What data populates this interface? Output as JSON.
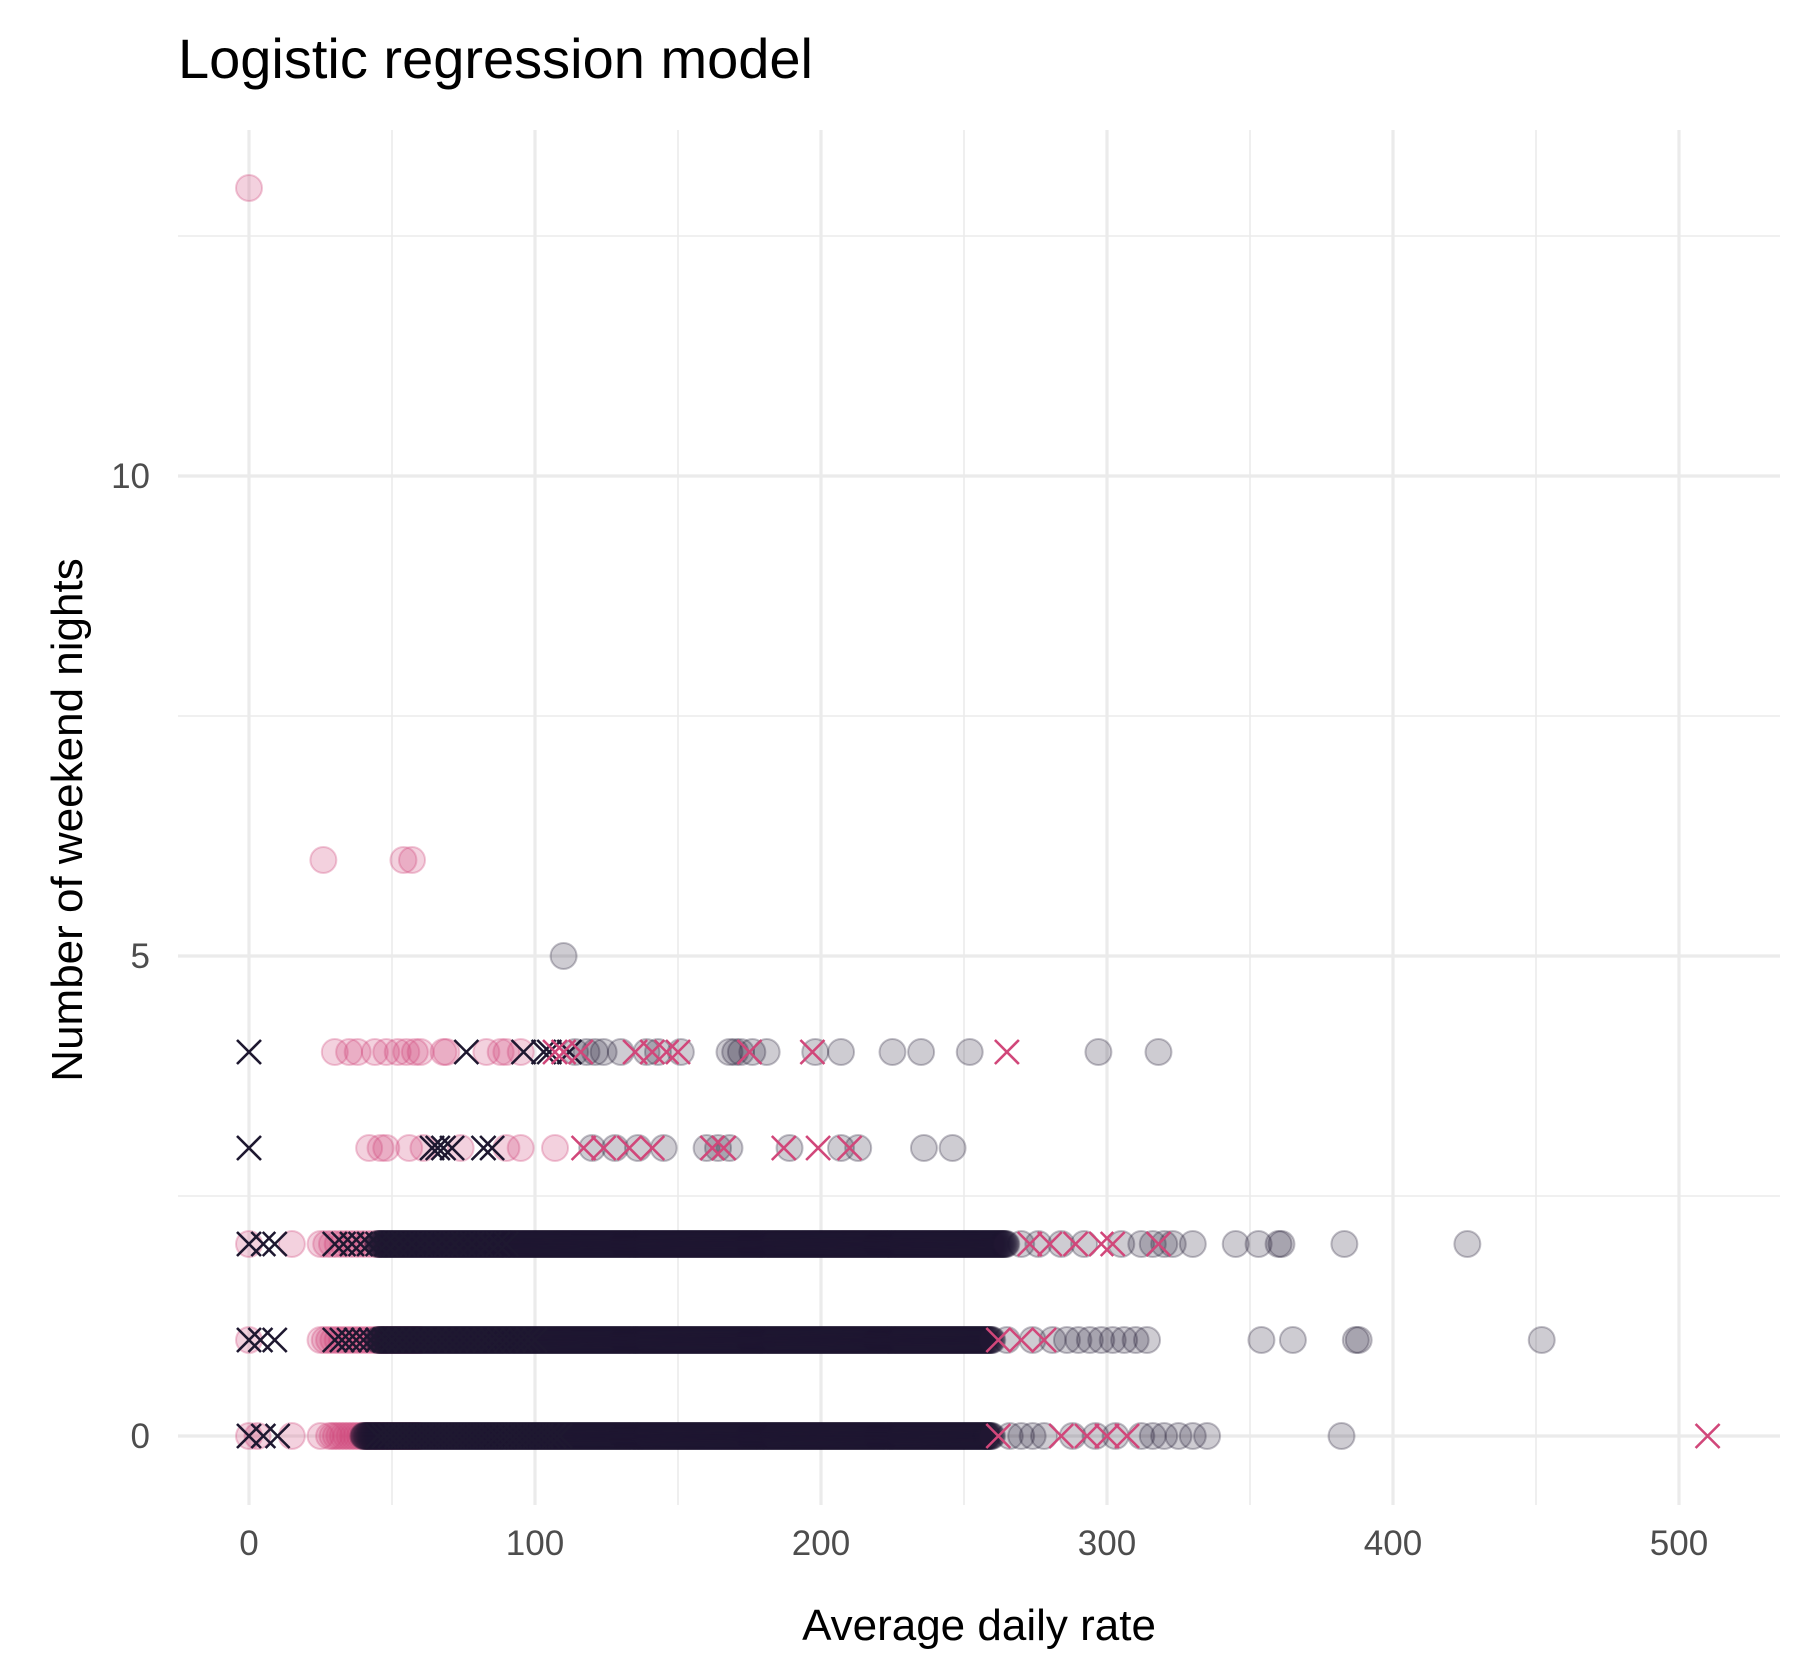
{
  "chart_data": {
    "type": "scatter",
    "title": "Logistic regression model",
    "xlabel": "Average daily rate",
    "ylabel": "Number of weekend nights",
    "xlim": [
      -25,
      530
    ],
    "ylim": [
      -0.6,
      13.8
    ],
    "x_ticks": [
      0,
      100,
      200,
      300,
      400,
      500
    ],
    "x_tick_labels": [
      "0",
      "100",
      "200",
      "300",
      "400",
      "500"
    ],
    "x_minor_ticks": [
      50,
      150,
      250,
      350,
      450
    ],
    "y_ticks": [
      0,
      5,
      10
    ],
    "y_tick_labels": [
      "0",
      "5",
      "10"
    ],
    "y_minor_ticks": [
      2.5,
      7.5,
      12.5
    ],
    "grid": true,
    "legend": "none",
    "colors": {
      "pink": "#d1477a",
      "dark": "#1e1830"
    },
    "marker_groups": [
      {
        "name": "pink-circle",
        "shape": "circle",
        "color": "pink",
        "alpha": 0.25
      },
      {
        "name": "dark-circle",
        "shape": "circle",
        "color": "dark",
        "alpha": 0.22
      },
      {
        "name": "dark-cross",
        "shape": "cross",
        "color": "dark",
        "alpha": 1.0
      },
      {
        "name": "pink-cross",
        "shape": "cross",
        "color": "pink",
        "alpha": 1.0
      }
    ],
    "bands": [
      {
        "y": 0,
        "group": "pink-circle",
        "from": 28,
        "to": 60,
        "step": 1.2
      },
      {
        "y": 0,
        "group": "dark-circle",
        "from": 40,
        "to": 260,
        "step": 0.35
      },
      {
        "y": 0,
        "group": "dark-cross",
        "from": 45,
        "to": 110,
        "step": 2.2
      },
      {
        "y": 1,
        "group": "pink-circle",
        "from": 25,
        "to": 60,
        "step": 1.5
      },
      {
        "y": 1,
        "group": "dark-circle",
        "from": 45,
        "to": 260,
        "step": 0.35
      },
      {
        "y": 1,
        "group": "dark-cross",
        "from": 30,
        "to": 100,
        "step": 2.5
      },
      {
        "y": 2,
        "group": "pink-circle",
        "from": 25,
        "to": 45,
        "step": 2
      },
      {
        "y": 2,
        "group": "dark-circle",
        "from": 45,
        "to": 265,
        "step": 0.35
      },
      {
        "y": 2,
        "group": "dark-cross",
        "from": 30,
        "to": 90,
        "step": 3
      }
    ],
    "points": [
      {
        "x": 0,
        "y": 13,
        "group": "pink-circle"
      },
      {
        "x": 26,
        "y": 6,
        "group": "pink-circle"
      },
      {
        "x": 54,
        "y": 6,
        "group": "pink-circle"
      },
      {
        "x": 57,
        "y": 6,
        "group": "pink-circle"
      },
      {
        "x": 110,
        "y": 5,
        "group": "dark-circle"
      },
      {
        "x": 0,
        "y": 4,
        "group": "dark-cross"
      },
      {
        "x": 30,
        "y": 4,
        "group": "pink-circle"
      },
      {
        "x": 35,
        "y": 4,
        "group": "pink-circle"
      },
      {
        "x": 38,
        "y": 4,
        "group": "pink-circle"
      },
      {
        "x": 44,
        "y": 4,
        "group": "pink-circle"
      },
      {
        "x": 48,
        "y": 4,
        "group": "pink-circle"
      },
      {
        "x": 52,
        "y": 4,
        "group": "pink-circle"
      },
      {
        "x": 55,
        "y": 4,
        "group": "pink-circle"
      },
      {
        "x": 58,
        "y": 4,
        "group": "pink-circle"
      },
      {
        "x": 60,
        "y": 4,
        "group": "pink-circle"
      },
      {
        "x": 68,
        "y": 4,
        "group": "pink-circle"
      },
      {
        "x": 69,
        "y": 4,
        "group": "pink-circle"
      },
      {
        "x": 76,
        "y": 4,
        "group": "dark-cross"
      },
      {
        "x": 83,
        "y": 4,
        "group": "pink-circle"
      },
      {
        "x": 88,
        "y": 4,
        "group": "pink-circle"
      },
      {
        "x": 90,
        "y": 4,
        "group": "pink-circle"
      },
      {
        "x": 95,
        "y": 4,
        "group": "pink-circle"
      },
      {
        "x": 96,
        "y": 4,
        "group": "dark-cross"
      },
      {
        "x": 103,
        "y": 4,
        "group": "dark-cross"
      },
      {
        "x": 105,
        "y": 4,
        "group": "dark-cross"
      },
      {
        "x": 107,
        "y": 4,
        "group": "pink-cross"
      },
      {
        "x": 110,
        "y": 4,
        "group": "pink-cross"
      },
      {
        "x": 112,
        "y": 4,
        "group": "dark-cross"
      },
      {
        "x": 114,
        "y": 4,
        "group": "dark-circle"
      },
      {
        "x": 116,
        "y": 4,
        "group": "pink-cross"
      },
      {
        "x": 118,
        "y": 4,
        "group": "dark-circle"
      },
      {
        "x": 121,
        "y": 4,
        "group": "dark-circle"
      },
      {
        "x": 124,
        "y": 4,
        "group": "dark-circle"
      },
      {
        "x": 130,
        "y": 4,
        "group": "dark-circle"
      },
      {
        "x": 135,
        "y": 4,
        "group": "pink-cross"
      },
      {
        "x": 139,
        "y": 4,
        "group": "dark-circle"
      },
      {
        "x": 141,
        "y": 4,
        "group": "pink-cross"
      },
      {
        "x": 143,
        "y": 4,
        "group": "dark-circle"
      },
      {
        "x": 146,
        "y": 4,
        "group": "pink-cross"
      },
      {
        "x": 150,
        "y": 4,
        "group": "pink-cross"
      },
      {
        "x": 151,
        "y": 4,
        "group": "dark-circle"
      },
      {
        "x": 168,
        "y": 4,
        "group": "dark-circle"
      },
      {
        "x": 170,
        "y": 4,
        "group": "dark-circle"
      },
      {
        "x": 172,
        "y": 4,
        "group": "dark-circle"
      },
      {
        "x": 175,
        "y": 4,
        "group": "pink-cross"
      },
      {
        "x": 176,
        "y": 4,
        "group": "dark-circle"
      },
      {
        "x": 181,
        "y": 4,
        "group": "dark-circle"
      },
      {
        "x": 197,
        "y": 4,
        "group": "pink-cross"
      },
      {
        "x": 198,
        "y": 4,
        "group": "dark-circle"
      },
      {
        "x": 207,
        "y": 4,
        "group": "dark-circle"
      },
      {
        "x": 225,
        "y": 4,
        "group": "dark-circle"
      },
      {
        "x": 235,
        "y": 4,
        "group": "dark-circle"
      },
      {
        "x": 252,
        "y": 4,
        "group": "dark-circle"
      },
      {
        "x": 265,
        "y": 4,
        "group": "pink-cross"
      },
      {
        "x": 297,
        "y": 4,
        "group": "dark-circle"
      },
      {
        "x": 318,
        "y": 4,
        "group": "dark-circle"
      },
      {
        "x": 0,
        "y": 3,
        "group": "dark-cross"
      },
      {
        "x": 42,
        "y": 3,
        "group": "pink-circle"
      },
      {
        "x": 46,
        "y": 3,
        "group": "pink-circle"
      },
      {
        "x": 48,
        "y": 3,
        "group": "pink-circle"
      },
      {
        "x": 56,
        "y": 3,
        "group": "pink-circle"
      },
      {
        "x": 61,
        "y": 3,
        "group": "pink-circle"
      },
      {
        "x": 64,
        "y": 3,
        "group": "dark-cross"
      },
      {
        "x": 66,
        "y": 3,
        "group": "dark-cross"
      },
      {
        "x": 68,
        "y": 3,
        "group": "dark-cross"
      },
      {
        "x": 71,
        "y": 3,
        "group": "dark-cross"
      },
      {
        "x": 74,
        "y": 3,
        "group": "pink-circle"
      },
      {
        "x": 82,
        "y": 3,
        "group": "dark-cross"
      },
      {
        "x": 85,
        "y": 3,
        "group": "dark-cross"
      },
      {
        "x": 90,
        "y": 3,
        "group": "pink-circle"
      },
      {
        "x": 95,
        "y": 3,
        "group": "pink-circle"
      },
      {
        "x": 107,
        "y": 3,
        "group": "pink-circle"
      },
      {
        "x": 117,
        "y": 3,
        "group": "pink-cross"
      },
      {
        "x": 120,
        "y": 3,
        "group": "dark-circle"
      },
      {
        "x": 124,
        "y": 3,
        "group": "pink-cross"
      },
      {
        "x": 128,
        "y": 3,
        "group": "dark-circle"
      },
      {
        "x": 133,
        "y": 3,
        "group": "pink-cross"
      },
      {
        "x": 136,
        "y": 3,
        "group": "dark-circle"
      },
      {
        "x": 141,
        "y": 3,
        "group": "pink-cross"
      },
      {
        "x": 145,
        "y": 3,
        "group": "dark-circle"
      },
      {
        "x": 160,
        "y": 3,
        "group": "dark-circle"
      },
      {
        "x": 162,
        "y": 3,
        "group": "pink-cross"
      },
      {
        "x": 164,
        "y": 3,
        "group": "dark-circle"
      },
      {
        "x": 166,
        "y": 3,
        "group": "pink-cross"
      },
      {
        "x": 168,
        "y": 3,
        "group": "dark-circle"
      },
      {
        "x": 187,
        "y": 3,
        "group": "pink-cross"
      },
      {
        "x": 189,
        "y": 3,
        "group": "dark-circle"
      },
      {
        "x": 199,
        "y": 3,
        "group": "pink-cross"
      },
      {
        "x": 207,
        "y": 3,
        "group": "dark-circle"
      },
      {
        "x": 210,
        "y": 3,
        "group": "pink-cross"
      },
      {
        "x": 213,
        "y": 3,
        "group": "dark-circle"
      },
      {
        "x": 236,
        "y": 3,
        "group": "dark-circle"
      },
      {
        "x": 246,
        "y": 3,
        "group": "dark-circle"
      },
      {
        "x": 0,
        "y": 2,
        "group": "pink-circle"
      },
      {
        "x": 0,
        "y": 2,
        "group": "dark-cross"
      },
      {
        "x": 5,
        "y": 2,
        "group": "dark-cross"
      },
      {
        "x": 9,
        "y": 2,
        "group": "dark-cross"
      },
      {
        "x": 15,
        "y": 2,
        "group": "pink-circle"
      },
      {
        "x": 270,
        "y": 2,
        "group": "dark-circle"
      },
      {
        "x": 273,
        "y": 2,
        "group": "pink-cross"
      },
      {
        "x": 276,
        "y": 2,
        "group": "dark-circle"
      },
      {
        "x": 280,
        "y": 2,
        "group": "pink-cross"
      },
      {
        "x": 284,
        "y": 2,
        "group": "dark-circle"
      },
      {
        "x": 289,
        "y": 2,
        "group": "pink-cross"
      },
      {
        "x": 292,
        "y": 2,
        "group": "dark-circle"
      },
      {
        "x": 298,
        "y": 2,
        "group": "pink-cross"
      },
      {
        "x": 302,
        "y": 2,
        "group": "pink-cross"
      },
      {
        "x": 305,
        "y": 2,
        "group": "dark-circle"
      },
      {
        "x": 312,
        "y": 2,
        "group": "dark-circle"
      },
      {
        "x": 316,
        "y": 2,
        "group": "dark-circle"
      },
      {
        "x": 318,
        "y": 2,
        "group": "pink-cross"
      },
      {
        "x": 320,
        "y": 2,
        "group": "dark-circle"
      },
      {
        "x": 323,
        "y": 2,
        "group": "dark-circle"
      },
      {
        "x": 330,
        "y": 2,
        "group": "dark-circle"
      },
      {
        "x": 345,
        "y": 2,
        "group": "dark-circle"
      },
      {
        "x": 353,
        "y": 2,
        "group": "dark-circle"
      },
      {
        "x": 360,
        "y": 2,
        "group": "dark-circle"
      },
      {
        "x": 361,
        "y": 2,
        "group": "dark-circle"
      },
      {
        "x": 383,
        "y": 2,
        "group": "dark-circle"
      },
      {
        "x": 426,
        "y": 2,
        "group": "dark-circle"
      },
      {
        "x": 0,
        "y": 1,
        "group": "pink-circle"
      },
      {
        "x": 0,
        "y": 1,
        "group": "dark-cross"
      },
      {
        "x": 4,
        "y": 1,
        "group": "dark-cross"
      },
      {
        "x": 9,
        "y": 1,
        "group": "dark-cross"
      },
      {
        "x": 262,
        "y": 1,
        "group": "pink-cross"
      },
      {
        "x": 265,
        "y": 1,
        "group": "dark-circle"
      },
      {
        "x": 270,
        "y": 1,
        "group": "pink-cross"
      },
      {
        "x": 274,
        "y": 1,
        "group": "dark-circle"
      },
      {
        "x": 278,
        "y": 1,
        "group": "pink-cross"
      },
      {
        "x": 281,
        "y": 1,
        "group": "dark-circle"
      },
      {
        "x": 286,
        "y": 1,
        "group": "dark-circle"
      },
      {
        "x": 290,
        "y": 1,
        "group": "dark-circle"
      },
      {
        "x": 294,
        "y": 1,
        "group": "dark-circle"
      },
      {
        "x": 298,
        "y": 1,
        "group": "dark-circle"
      },
      {
        "x": 302,
        "y": 1,
        "group": "dark-circle"
      },
      {
        "x": 306,
        "y": 1,
        "group": "dark-circle"
      },
      {
        "x": 310,
        "y": 1,
        "group": "dark-circle"
      },
      {
        "x": 314,
        "y": 1,
        "group": "dark-circle"
      },
      {
        "x": 354,
        "y": 1,
        "group": "dark-circle"
      },
      {
        "x": 365,
        "y": 1,
        "group": "dark-circle"
      },
      {
        "x": 387,
        "y": 1,
        "group": "dark-circle"
      },
      {
        "x": 388,
        "y": 1,
        "group": "dark-circle"
      },
      {
        "x": 452,
        "y": 1,
        "group": "dark-circle"
      },
      {
        "x": 0,
        "y": 0,
        "group": "pink-circle"
      },
      {
        "x": 0,
        "y": 0,
        "group": "dark-cross"
      },
      {
        "x": 3,
        "y": 0,
        "group": "pink-circle"
      },
      {
        "x": 5,
        "y": 0,
        "group": "dark-cross"
      },
      {
        "x": 10,
        "y": 0,
        "group": "dark-cross"
      },
      {
        "x": 15,
        "y": 0,
        "group": "pink-circle"
      },
      {
        "x": 25,
        "y": 0,
        "group": "pink-circle"
      },
      {
        "x": 258,
        "y": 0,
        "group": "dark-circle"
      },
      {
        "x": 262,
        "y": 0,
        "group": "pink-cross"
      },
      {
        "x": 266,
        "y": 0,
        "group": "dark-circle"
      },
      {
        "x": 270,
        "y": 0,
        "group": "dark-circle"
      },
      {
        "x": 274,
        "y": 0,
        "group": "dark-circle"
      },
      {
        "x": 278,
        "y": 0,
        "group": "dark-circle"
      },
      {
        "x": 284,
        "y": 0,
        "group": "pink-cross"
      },
      {
        "x": 288,
        "y": 0,
        "group": "dark-circle"
      },
      {
        "x": 293,
        "y": 0,
        "group": "pink-cross"
      },
      {
        "x": 296,
        "y": 0,
        "group": "dark-circle"
      },
      {
        "x": 300,
        "y": 0,
        "group": "pink-cross"
      },
      {
        "x": 303,
        "y": 0,
        "group": "dark-circle"
      },
      {
        "x": 307,
        "y": 0,
        "group": "pink-cross"
      },
      {
        "x": 312,
        "y": 0,
        "group": "dark-circle"
      },
      {
        "x": 316,
        "y": 0,
        "group": "dark-circle"
      },
      {
        "x": 320,
        "y": 0,
        "group": "dark-circle"
      },
      {
        "x": 325,
        "y": 0,
        "group": "dark-circle"
      },
      {
        "x": 330,
        "y": 0,
        "group": "dark-circle"
      },
      {
        "x": 335,
        "y": 0,
        "group": "dark-circle"
      },
      {
        "x": 382,
        "y": 0,
        "group": "dark-circle"
      },
      {
        "x": 510,
        "y": 0,
        "group": "pink-cross"
      }
    ]
  }
}
